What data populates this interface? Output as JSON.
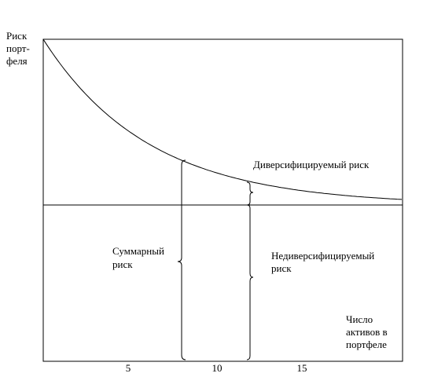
{
  "y_axis_label": [
    "Риск",
    "порт-",
    "феля"
  ],
  "x_axis_label": [
    "Число",
    "активов в",
    "портфеле"
  ],
  "x_ticks": [
    "5",
    "10",
    "15"
  ],
  "annotations": {
    "diversifiable": "Диверсифицируемый риск",
    "total": [
      "Суммарный",
      "риск"
    ],
    "nondiversifiable": [
      "Недиверсифицируемый",
      "риск"
    ]
  }
}
